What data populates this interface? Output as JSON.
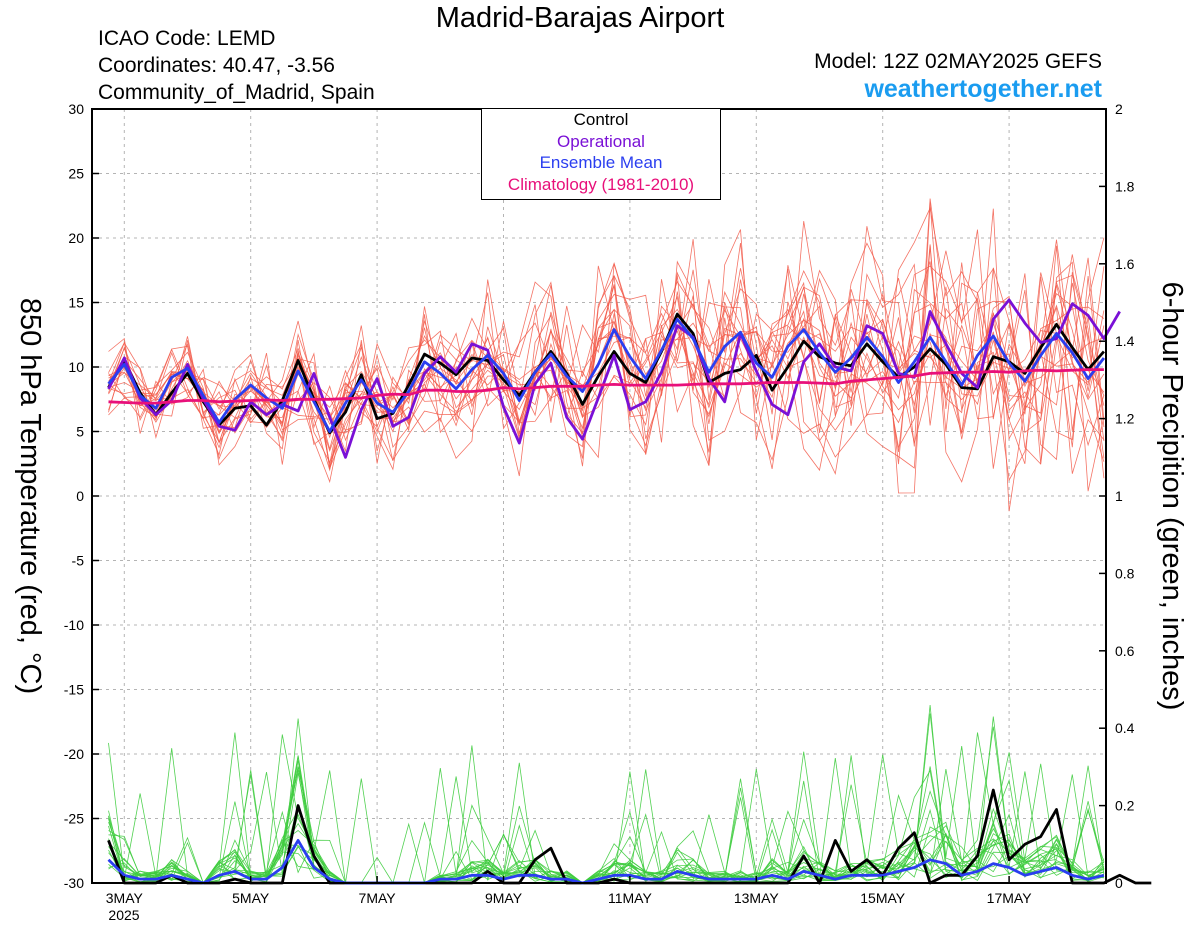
{
  "header": {
    "title": "Madrid-Barajas Airport",
    "icao": "ICAO Code: LEMD",
    "coordinates": "Coordinates: 40.47, -3.56",
    "region": "Community_of_Madrid, Spain",
    "model": "Model: 12Z 02MAY2025 GEFS",
    "site": "weathertogether.net"
  },
  "colors": {
    "members": "#f25a4a",
    "precip_members": "#3ecc3e",
    "control": "#000000",
    "operational": "#7a10d6",
    "ensemble_mean": "#2a3ef0",
    "climatology": "#e8107a",
    "site": "#1a9cf0"
  },
  "chart_data": {
    "type": "line",
    "title": "Madrid-Barajas Airport",
    "ylabel": "850 hPa Temperature (red, °C)",
    "y2label": "6-hour Precipition (green, inches)",
    "ylim": [
      -30,
      30
    ],
    "y2lim": [
      0,
      2
    ],
    "yticks": [
      "30",
      "25",
      "20",
      "15",
      "10",
      "5",
      "0",
      "-5",
      "-10",
      "-15",
      "-20",
      "-25",
      "-30"
    ],
    "y2ticks": [
      "2",
      "1.8",
      "1.6",
      "1.4",
      "1.2",
      "1",
      "0.8",
      "0.6",
      "0.4",
      "0.2",
      "0"
    ],
    "x_start": "2025-05-02 18Z",
    "x_step_hours": 6,
    "xticks": [
      {
        "label": "3MAY",
        "index": 1
      },
      {
        "label": "5MAY",
        "index": 9
      },
      {
        "label": "7MAY",
        "index": 17
      },
      {
        "label": "9MAY",
        "index": 25
      },
      {
        "label": "11MAY",
        "index": 33
      },
      {
        "label": "13MAY",
        "index": 41
      },
      {
        "label": "15MAY",
        "index": 49
      },
      {
        "label": "17MAY",
        "index": 57
      }
    ],
    "year_label": "2025",
    "legend": [
      "Control",
      "Operational",
      "Ensemble Mean",
      "Climatology (1981-2010)"
    ],
    "grid": true,
    "legend_position": "top-center",
    "series": [
      {
        "name": "Control",
        "axis": "left",
        "values": [
          8.4,
          10.5,
          8,
          6.3,
          8,
          9.5,
          7.3,
          5.5,
          6.8,
          7,
          5.5,
          7.4,
          10.5,
          7.5,
          4.9,
          6.5,
          9.4,
          6,
          6.4,
          8.6,
          11,
          10.3,
          9.4,
          10.7,
          10.5,
          9,
          7.8,
          9.6,
          11.2,
          9.5,
          7.1,
          9.3,
          11.2,
          9.5,
          8.8,
          11.2,
          14.1,
          12.6,
          8.8,
          9.5,
          9.8,
          10.9,
          8.2,
          10,
          12,
          10.8,
          10.3,
          10.1,
          11.8,
          10.4,
          9.2,
          10,
          11.4,
          10.2,
          8.4,
          8.3,
          10.8,
          10.4,
          9.5,
          11.5,
          13.3,
          11.5,
          9.8,
          11.2
        ]
      },
      {
        "name": "Operational",
        "axis": "left",
        "values": [
          8.3,
          10.7,
          7.6,
          6.3,
          7.4,
          10.2,
          7.5,
          5.4,
          5.1,
          7.3,
          6.3,
          7.1,
          6.6,
          9.5,
          6.1,
          3,
          6.7,
          9.1,
          5.4,
          6.1,
          9.5,
          10.8,
          9.6,
          11.8,
          11.3,
          6.9,
          4.1,
          8.7,
          10.3,
          6.1,
          4.4,
          7.6,
          10.9,
          6.7,
          7.3,
          9.6,
          13.2,
          12.3,
          9.1,
          7.3,
          12.6,
          9.7,
          7.1,
          6.3,
          10.4,
          11.8,
          10,
          9.7,
          13.2,
          12.6,
          9.5,
          9.2,
          14.3,
          11.8,
          9.5,
          8.4,
          13.7,
          15.2,
          13.4,
          11.9,
          12.2,
          14.9,
          14,
          12.2,
          14.3
        ]
      },
      {
        "name": "Ensemble Mean",
        "axis": "left",
        "values": [
          8.7,
          10.2,
          7.8,
          6.8,
          9.2,
          9.9,
          7.8,
          5.7,
          7.5,
          8.6,
          7.6,
          6.8,
          9.7,
          7.3,
          5,
          7.2,
          9,
          7.2,
          6.5,
          8.1,
          10.4,
          9.5,
          8.3,
          9.8,
          10.9,
          9.5,
          7.4,
          9.6,
          11,
          9.3,
          8.1,
          10.2,
          12.9,
          10.8,
          9.1,
          11.3,
          13.7,
          12.2,
          9.6,
          11.6,
          12.7,
          10.3,
          9.2,
          11.6,
          12.9,
          11.1,
          9.6,
          10.7,
          12.3,
          10.8,
          8.8,
          10.4,
          12.3,
          10.4,
          8.6,
          10.9,
          12.4,
          10.3,
          8.9,
          10.9,
          12.6,
          11.1,
          9.1,
          10.7
        ]
      },
      {
        "name": "Climatology (1981-2010)",
        "axis": "left",
        "values": [
          7.3,
          7.25,
          7.2,
          7.2,
          7.3,
          7.4,
          7.4,
          7.3,
          7.35,
          7.4,
          7.45,
          7.4,
          7.5,
          7.5,
          7.5,
          7.55,
          7.6,
          7.8,
          7.9,
          7.85,
          8.2,
          8.2,
          8.1,
          8.1,
          8.2,
          8.4,
          8.3,
          8.4,
          8.5,
          8.5,
          8.5,
          8.6,
          8.65,
          8.6,
          8.6,
          8.6,
          8.6,
          8.65,
          8.7,
          8.7,
          8.7,
          8.75,
          8.8,
          8.8,
          8.8,
          8.75,
          8.7,
          8.9,
          9,
          9.1,
          9.2,
          9.3,
          9.5,
          9.55,
          9.6,
          9.6,
          9.65,
          9.6,
          9.7,
          9.75,
          9.7,
          9.75,
          9.8,
          9.8
        ]
      },
      {
        "name": "Control",
        "axis": "right",
        "values": [
          0.11,
          0,
          0,
          0,
          0.02,
          0,
          0,
          0,
          0.01,
          0,
          0,
          0,
          0.2,
          0.07,
          0,
          0,
          0,
          0,
          0,
          0,
          0,
          0,
          0,
          0,
          0.03,
          0,
          0,
          0.06,
          0.09,
          0,
          0,
          0,
          0.01,
          0,
          0,
          0,
          0,
          0,
          0,
          0,
          0,
          0,
          0,
          0,
          0.07,
          0,
          0.11,
          0.03,
          0.06,
          0.02,
          0.09,
          0.13,
          0,
          0.02,
          0.02,
          0.07,
          0.24,
          0.06,
          0.1,
          0.12,
          0.19,
          0,
          0,
          0,
          0.02,
          0,
          0
        ]
      },
      {
        "name": "Ensemble Mean",
        "axis": "right",
        "values": [
          0.06,
          0.02,
          0.01,
          0.01,
          0.02,
          0.01,
          0,
          0.02,
          0.03,
          0.01,
          0.01,
          0.04,
          0.11,
          0.04,
          0.01,
          0,
          0,
          0,
          0,
          0,
          0,
          0.01,
          0.01,
          0.02,
          0.02,
          0.01,
          0.02,
          0.02,
          0.01,
          0.01,
          0,
          0.01,
          0.02,
          0.02,
          0.01,
          0.01,
          0.03,
          0.02,
          0.01,
          0.01,
          0.01,
          0.01,
          0.02,
          0.01,
          0.03,
          0.02,
          0.01,
          0.02,
          0.02,
          0.02,
          0.03,
          0.04,
          0.06,
          0.05,
          0.02,
          0.03,
          0.05,
          0.04,
          0.02,
          0.03,
          0.04,
          0.02,
          0.01,
          0.02
        ]
      }
    ]
  }
}
